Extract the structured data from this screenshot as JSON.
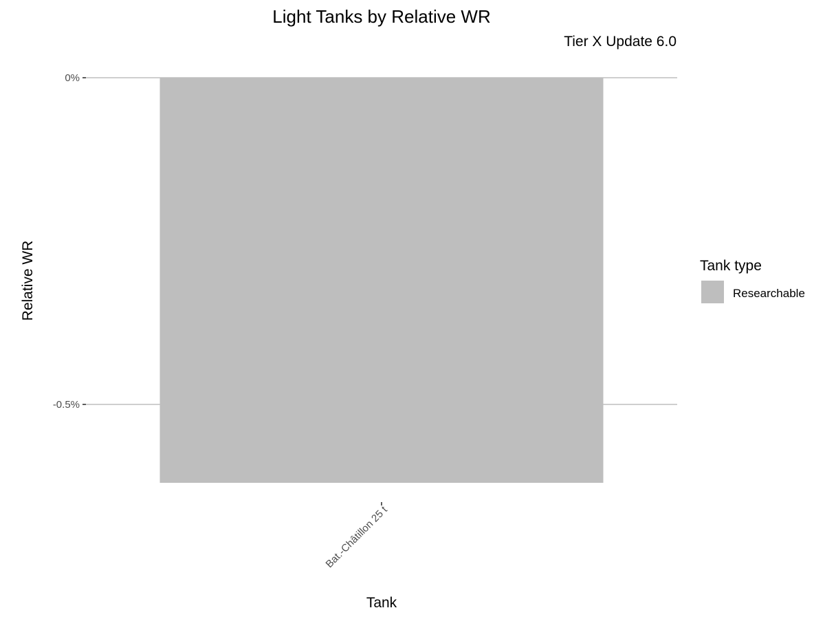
{
  "chart_data": {
    "type": "bar",
    "title": "Light Tanks by Relative WR",
    "subtitle": "Tier X Update 6.0",
    "xlabel": "Tank",
    "ylabel": "Relative WR",
    "categories": [
      "Bat.-Châtillon 25 t"
    ],
    "series": [
      {
        "values": [
          -0.0062
        ]
      }
    ],
    "fill_by": "Tank type",
    "fill_categories": [
      "Researchable"
    ],
    "fill_colors": [
      "#bebebe"
    ],
    "ylim": [
      -0.0062,
      0
    ],
    "yticks": [
      {
        "value": 0,
        "label": "0%"
      },
      {
        "value": -0.005,
        "label": "-0.5%"
      }
    ],
    "grid": true,
    "legend": {
      "title": "Tank type",
      "position": "right",
      "items": [
        {
          "label": "Researchable",
          "color": "#bebebe"
        }
      ]
    }
  }
}
